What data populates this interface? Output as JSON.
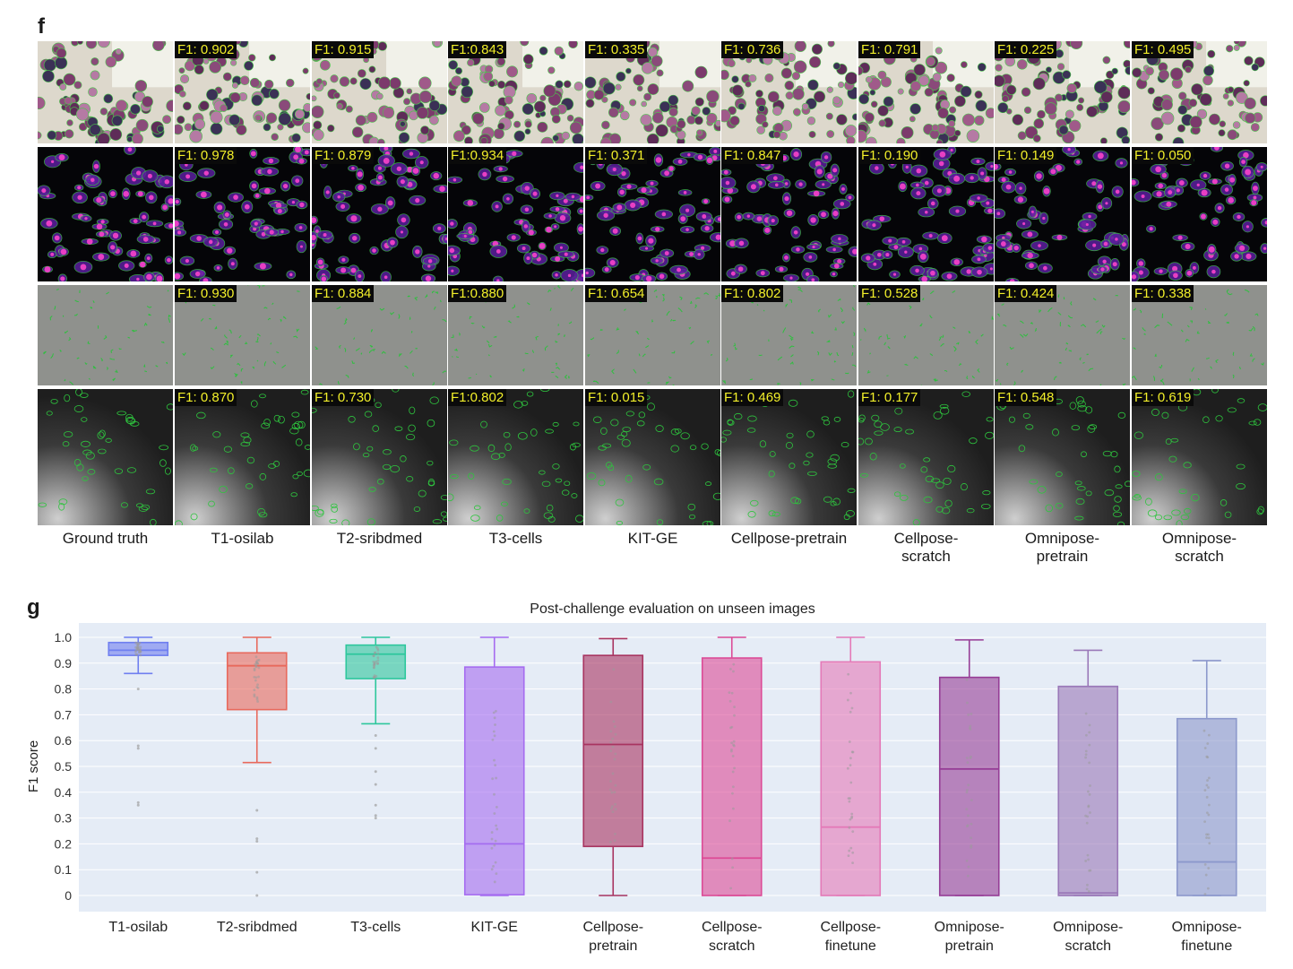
{
  "panel_f": {
    "letter": "f",
    "methods": [
      "Ground truth",
      "T1-osilab",
      "T2-sribdmed",
      "T3-cells",
      "KIT-GE",
      "Cellpose-pretrain",
      "Cellpose-\nscratch",
      "Omnipose-\npretrain",
      "Omnipose-\nscratch"
    ],
    "rows": [
      {
        "style": "stained",
        "scores": [
          "",
          "F1: 0.902",
          "F1: 0.915",
          "F1:0.843",
          "F1: 0.335",
          "F1: 0.736",
          "F1: 0.791",
          "F1: 0.225",
          "F1: 0.495"
        ]
      },
      {
        "style": "fluorescent",
        "scores": [
          "",
          "F1: 0.978",
          "F1: 0.879",
          "F1:0.934",
          "F1: 0.371",
          "F1: 0.847",
          "F1: 0.190",
          "F1: 0.149",
          "F1: 0.050"
        ]
      },
      {
        "style": "phase",
        "scores": [
          "",
          "F1: 0.930",
          "F1: 0.884",
          "F1:0.880",
          "F1: 0.654",
          "F1: 0.802",
          "F1: 0.528",
          "F1: 0.424",
          "F1: 0.338"
        ]
      },
      {
        "style": "brightfield",
        "scores": [
          "",
          "F1: 0.870",
          "F1: 0.730",
          "F1:0.802",
          "F1: 0.015",
          "F1: 0.469",
          "F1: 0.177",
          "F1: 0.548",
          "F1: 0.619"
        ]
      }
    ]
  },
  "panel_g": {
    "letter": "g",
    "chart_data": {
      "type": "box",
      "title": "Post-challenge evaluation on unseen images",
      "ylabel": "F1 score",
      "ylim": [
        0,
        1.0
      ],
      "yticks": [
        "0",
        "0.1",
        "0.2",
        "0.3",
        "0.4",
        "0.5",
        "0.6",
        "0.7",
        "0.8",
        "0.9",
        "1.0"
      ],
      "grid": true,
      "categories": [
        "T1-osilab",
        "T2-sribdmed",
        "T3-cells",
        "KIT-GE",
        "Cellpose-\npretrain",
        "Cellpose-\nscratch",
        "Cellpose-\nfinetune",
        "Omnipose-\npretrain",
        "Omnipose-\nscratch",
        "Omnipose-\nfinetune"
      ],
      "boxes": [
        {
          "min": 0.86,
          "q1": 0.93,
          "median": 0.95,
          "q3": 0.98,
          "max": 1.0,
          "color": "#6f7ff0"
        },
        {
          "min": 0.515,
          "q1": 0.72,
          "median": 0.89,
          "q3": 0.94,
          "max": 1.0,
          "color": "#e8695c"
        },
        {
          "min": 0.665,
          "q1": 0.84,
          "median": 0.935,
          "q3": 0.97,
          "max": 1.0,
          "color": "#2ec79d"
        },
        {
          "min": 0.0,
          "q1": 0.003,
          "median": 0.2,
          "q3": 0.885,
          "max": 1.0,
          "color": "#a56cf0"
        },
        {
          "min": 0.0,
          "q1": 0.19,
          "median": 0.585,
          "q3": 0.93,
          "max": 0.995,
          "color": "#a83460"
        },
        {
          "min": 0.0,
          "q1": 0.0,
          "median": 0.145,
          "q3": 0.92,
          "max": 1.0,
          "color": "#dc4b96"
        },
        {
          "min": 0.0,
          "q1": 0.0,
          "median": 0.265,
          "q3": 0.905,
          "max": 1.0,
          "color": "#e47ab8"
        },
        {
          "min": 0.0,
          "q1": 0.0,
          "median": 0.49,
          "q3": 0.845,
          "max": 0.99,
          "color": "#963d96"
        },
        {
          "min": 0.0,
          "q1": 0.0,
          "median": 0.01,
          "q3": 0.81,
          "max": 0.95,
          "color": "#9a78b8"
        },
        {
          "min": 0.0,
          "q1": 0.0,
          "median": 0.13,
          "q3": 0.685,
          "max": 0.91,
          "color": "#8c98cc"
        }
      ],
      "outliers": [
        [
          0.8,
          0.58,
          0.57,
          0.36,
          0.35
        ],
        [
          0.33,
          0.22,
          0.21,
          0.09,
          0.0
        ],
        [
          0.62,
          0.57,
          0.48,
          0.43,
          0.35,
          0.31,
          0.3
        ],
        [],
        [],
        [],
        [],
        [],
        [],
        []
      ]
    }
  }
}
